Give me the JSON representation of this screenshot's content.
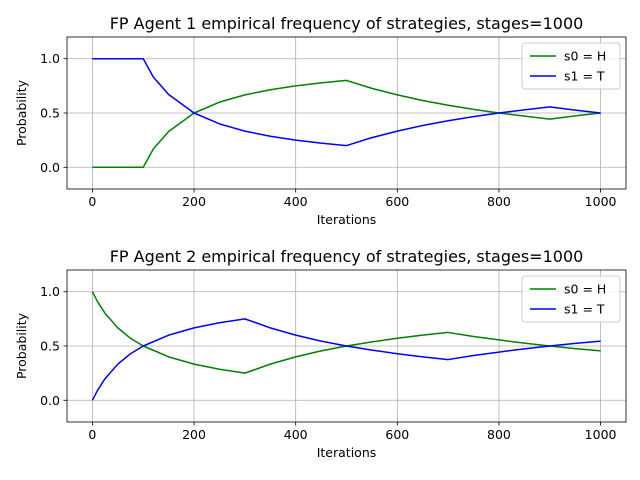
{
  "chart_data": [
    {
      "type": "line",
      "title": "FP Agent 1 empirical frequency of strategies, stages=1000",
      "xlabel": "Iterations",
      "ylabel": "Probability",
      "xlim": [
        -50,
        1050
      ],
      "ylim": [
        -0.2,
        1.2
      ],
      "xticks": [
        0,
        200,
        400,
        600,
        800,
        1000
      ],
      "yticks": [
        0.0,
        0.5,
        1.0
      ],
      "xtick_labels": [
        "0",
        "200",
        "400",
        "600",
        "800",
        "1000"
      ],
      "ytick_labels": [
        "0.0",
        "0.5",
        "1.0"
      ],
      "grid": true,
      "legend": "upper-right",
      "series": [
        {
          "name": "s0 = H",
          "color": "#008000",
          "x": [
            0,
            100,
            120,
            150,
            200,
            250,
            300,
            350,
            400,
            450,
            500,
            550,
            600,
            650,
            700,
            750,
            800,
            850,
            900,
            950,
            1000
          ],
          "y": [
            0.0,
            0.0,
            0.17,
            0.33,
            0.5,
            0.6,
            0.667,
            0.714,
            0.75,
            0.778,
            0.8,
            0.727,
            0.667,
            0.615,
            0.571,
            0.533,
            0.5,
            0.471,
            0.444,
            0.474,
            0.5
          ]
        },
        {
          "name": "s1 = T",
          "color": "#0000ff",
          "x": [
            0,
            100,
            120,
            150,
            200,
            250,
            300,
            350,
            400,
            450,
            500,
            550,
            600,
            650,
            700,
            750,
            800,
            850,
            900,
            950,
            1000
          ],
          "y": [
            1.0,
            1.0,
            0.83,
            0.67,
            0.5,
            0.4,
            0.333,
            0.286,
            0.25,
            0.222,
            0.2,
            0.273,
            0.333,
            0.385,
            0.429,
            0.467,
            0.5,
            0.529,
            0.556,
            0.526,
            0.5
          ]
        }
      ]
    },
    {
      "type": "line",
      "title": "FP Agent 2 empirical frequency of strategies, stages=1000",
      "xlabel": "Iterations",
      "ylabel": "Probability",
      "xlim": [
        -50,
        1050
      ],
      "ylim": [
        -0.2,
        1.2
      ],
      "xticks": [
        0,
        200,
        400,
        600,
        800,
        1000
      ],
      "yticks": [
        0.0,
        0.5,
        1.0
      ],
      "xtick_labels": [
        "0",
        "200",
        "400",
        "600",
        "800",
        "1000"
      ],
      "ytick_labels": [
        "0.0",
        "0.5",
        "1.0"
      ],
      "grid": true,
      "legend": "upper-right",
      "series": [
        {
          "name": "s0 = H",
          "color": "#008000",
          "x": [
            0,
            10,
            25,
            50,
            75,
            100,
            150,
            200,
            250,
            300,
            350,
            400,
            450,
            500,
            550,
            600,
            650,
            700,
            750,
            800,
            850,
            900,
            950,
            1000
          ],
          "y": [
            1.0,
            0.909,
            0.8,
            0.667,
            0.571,
            0.5,
            0.4,
            0.333,
            0.286,
            0.25,
            0.333,
            0.4,
            0.455,
            0.5,
            0.538,
            0.571,
            0.6,
            0.625,
            0.588,
            0.556,
            0.526,
            0.5,
            0.476,
            0.455
          ]
        },
        {
          "name": "s1 = T",
          "color": "#0000ff",
          "x": [
            0,
            10,
            25,
            50,
            75,
            100,
            150,
            200,
            250,
            300,
            350,
            400,
            450,
            500,
            550,
            600,
            650,
            700,
            750,
            800,
            850,
            900,
            950,
            1000
          ],
          "y": [
            0.0,
            0.091,
            0.2,
            0.333,
            0.429,
            0.5,
            0.6,
            0.667,
            0.714,
            0.75,
            0.667,
            0.6,
            0.545,
            0.5,
            0.462,
            0.429,
            0.4,
            0.375,
            0.412,
            0.444,
            0.474,
            0.5,
            0.524,
            0.545
          ]
        }
      ]
    }
  ]
}
